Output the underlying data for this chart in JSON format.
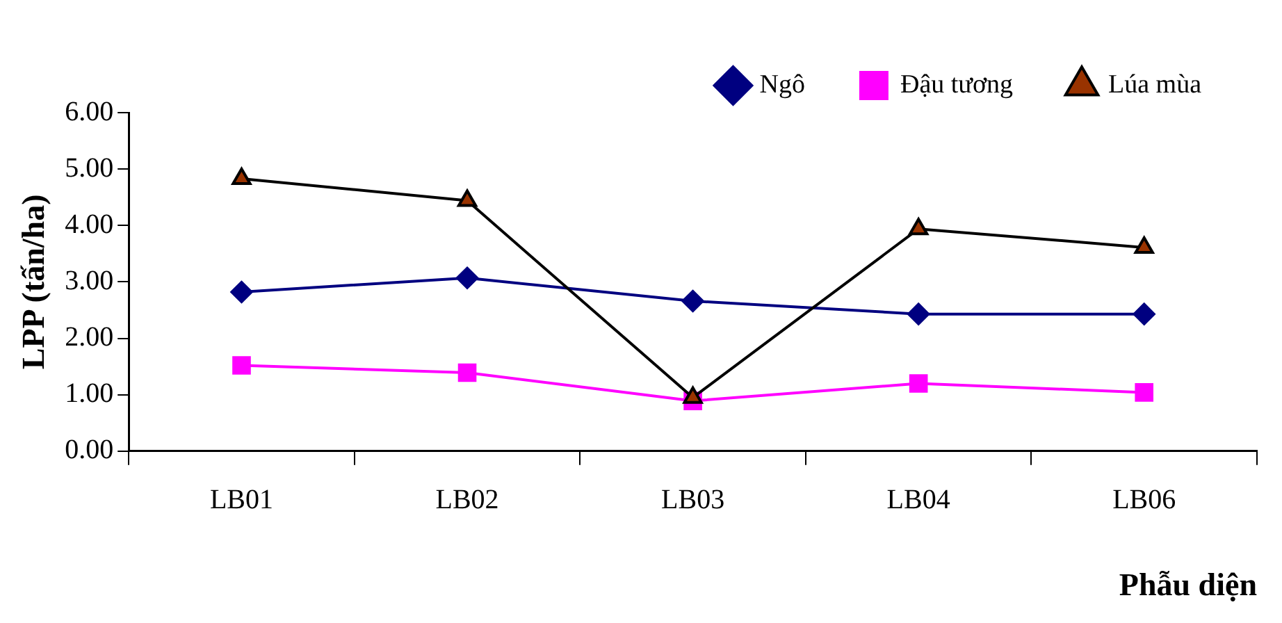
{
  "chart_data": {
    "type": "line",
    "xlabel": "Phẫu diện",
    "ylabel": "LPP (tấn/ha)",
    "categories": [
      "LB01",
      "LB02",
      "LB03",
      "LB04",
      "LB06"
    ],
    "series": [
      {
        "name": "Ngô",
        "color": "#000080",
        "marker": "diamond",
        "values": [
          2.82,
          3.07,
          2.66,
          2.43,
          2.43
        ]
      },
      {
        "name": "Đậu tương",
        "color": "#ff00ff",
        "marker": "square",
        "values": [
          1.52,
          1.39,
          0.89,
          1.2,
          1.04
        ]
      },
      {
        "name": "Lúa mùa",
        "color": "#000000",
        "marker": "triangle",
        "values": [
          4.83,
          4.44,
          0.95,
          3.94,
          3.61
        ]
      }
    ],
    "ylim": [
      0,
      6
    ],
    "yticks": [
      {
        "value": 0,
        "label": "0.00"
      },
      {
        "value": 1,
        "label": "1.00"
      },
      {
        "value": 2,
        "label": "2.00"
      },
      {
        "value": 3,
        "label": "3.00"
      },
      {
        "value": 4,
        "label": "4.00"
      },
      {
        "value": 5,
        "label": "5.00"
      },
      {
        "value": 6,
        "label": "6.00"
      }
    ],
    "grid": false,
    "legend": "top right"
  }
}
